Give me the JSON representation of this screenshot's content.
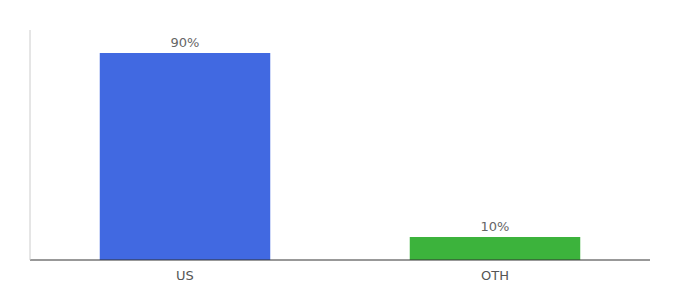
{
  "chart_data": {
    "type": "bar",
    "categories": [
      "US",
      "OTH"
    ],
    "values": [
      90,
      10
    ],
    "value_labels": [
      "90%",
      "10%"
    ],
    "data_labels": true,
    "colors": [
      "#4169e1",
      "#3cb33c"
    ],
    "ylim": [
      0,
      100
    ],
    "tick_labels": "x"
  }
}
